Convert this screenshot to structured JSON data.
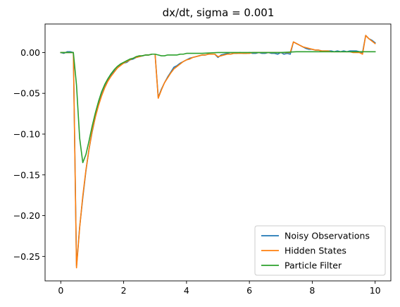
{
  "chart_data": {
    "type": "line",
    "title": "dx/dt, sigma = 0.001",
    "xlabel": "",
    "ylabel": "",
    "xlim": [
      -0.5,
      10.5
    ],
    "ylim": [
      -0.28,
      0.035
    ],
    "x_ticks": [
      0,
      2,
      4,
      6,
      8,
      10
    ],
    "x_tick_labels": [
      "0",
      "2",
      "4",
      "6",
      "8",
      "10"
    ],
    "y_ticks": [
      0.0,
      -0.05,
      -0.1,
      -0.15,
      -0.2,
      -0.25
    ],
    "y_tick_labels": [
      "0.00",
      "−0.05",
      "−0.10",
      "−0.15",
      "−0.20",
      "−0.25"
    ],
    "grid": false,
    "legend_position": "lower-right",
    "series": [
      {
        "name": "Noisy Observations",
        "color": "#1f77b4",
        "x": [
          0,
          0.1,
          0.2,
          0.3,
          0.4,
          0.5,
          0.6,
          0.7,
          0.8,
          0.9,
          1.0,
          1.1,
          1.2,
          1.3,
          1.4,
          1.5,
          1.6,
          1.7,
          1.8,
          1.9,
          2.0,
          2.1,
          2.2,
          2.3,
          2.4,
          2.5,
          2.6,
          2.7,
          2.8,
          2.9,
          3.0,
          3.1,
          3.2,
          3.3,
          3.4,
          3.5,
          3.6,
          3.7,
          3.8,
          3.9,
          4.0,
          4.1,
          4.2,
          4.3,
          4.4,
          4.5,
          4.6,
          4.7,
          4.8,
          4.9,
          5.0,
          5.1,
          5.2,
          5.3,
          5.4,
          5.5,
          5.6,
          5.7,
          5.8,
          5.9,
          6.0,
          6.1,
          6.2,
          6.3,
          6.4,
          6.5,
          6.6,
          6.7,
          6.8,
          6.9,
          7.0,
          7.1,
          7.2,
          7.3,
          7.4,
          7.5,
          7.6,
          7.7,
          7.8,
          7.9,
          8.0,
          8.1,
          8.2,
          8.3,
          8.4,
          8.5,
          8.6,
          8.7,
          8.8,
          8.9,
          9.0,
          9.1,
          9.2,
          9.3,
          9.4,
          9.5,
          9.6,
          9.7,
          9.8,
          9.9,
          10.0
        ],
        "y": [
          0,
          -0.001,
          0.001,
          0.001,
          0,
          -0.262,
          -0.214,
          -0.178,
          -0.145,
          -0.118,
          -0.097,
          -0.079,
          -0.064,
          -0.052,
          -0.042,
          -0.034,
          -0.028,
          -0.023,
          -0.019,
          -0.015,
          -0.013,
          -0.012,
          -0.009,
          -0.008,
          -0.006,
          -0.005,
          -0.004,
          -0.003,
          -0.003,
          -0.002,
          -0.002,
          -0.055,
          -0.045,
          -0.037,
          -0.03,
          -0.024,
          -0.018,
          -0.016,
          -0.013,
          -0.011,
          -0.009,
          -0.007,
          -0.006,
          -0.005,
          -0.004,
          -0.003,
          -0.003,
          -0.002,
          -0.002,
          -0.002,
          -0.006,
          -0.003,
          -0.002,
          -0.001,
          -0.002,
          -0.001,
          -0.001,
          0,
          -0.001,
          -0.001,
          0,
          -0.001,
          -0.001,
          0,
          -0.001,
          -0.001,
          0,
          -0.001,
          -0.001,
          -0.002,
          0,
          -0.002,
          -0.001,
          -0.002,
          0.013,
          0.011,
          0.009,
          0.007,
          0.005,
          0.004,
          0.004,
          0.003,
          0.003,
          0.002,
          0.002,
          0.002,
          0.002,
          0.001,
          0.002,
          0.001,
          0.002,
          0.001,
          0.002,
          0.002,
          0.002,
          0.001,
          0,
          0.021,
          0.017,
          0.015,
          0.012
        ]
      },
      {
        "name": "Hidden States",
        "color": "#ff7f0e",
        "x": [
          0,
          0.1,
          0.2,
          0.3,
          0.4,
          0.5,
          0.6,
          0.7,
          0.8,
          0.9,
          1.0,
          1.1,
          1.2,
          1.3,
          1.4,
          1.5,
          1.6,
          1.7,
          1.8,
          1.9,
          2.0,
          2.1,
          2.2,
          2.3,
          2.4,
          2.5,
          2.6,
          2.7,
          2.8,
          2.9,
          3.0,
          3.1,
          3.2,
          3.3,
          3.4,
          3.5,
          3.6,
          3.7,
          3.8,
          3.9,
          4.0,
          4.1,
          4.2,
          4.3,
          4.4,
          4.5,
          4.6,
          4.7,
          4.8,
          4.9,
          5.0,
          5.1,
          5.2,
          5.3,
          5.4,
          5.5,
          5.6,
          5.7,
          5.8,
          5.9,
          6.0,
          6.1,
          6.2,
          6.3,
          6.4,
          6.5,
          6.6,
          6.7,
          6.8,
          6.9,
          7.0,
          7.1,
          7.2,
          7.3,
          7.4,
          7.5,
          7.6,
          7.7,
          7.8,
          7.9,
          8.0,
          8.1,
          8.2,
          8.3,
          8.4,
          8.5,
          8.6,
          8.7,
          8.8,
          8.9,
          9.0,
          9.1,
          9.2,
          9.3,
          9.4,
          9.5,
          9.6,
          9.7,
          9.8,
          9.9,
          10.0
        ],
        "y": [
          0,
          0,
          0,
          0,
          0,
          -0.264,
          -0.215,
          -0.176,
          -0.144,
          -0.118,
          -0.096,
          -0.079,
          -0.065,
          -0.053,
          -0.043,
          -0.035,
          -0.029,
          -0.024,
          -0.019,
          -0.016,
          -0.013,
          -0.011,
          -0.009,
          -0.007,
          -0.006,
          -0.005,
          -0.004,
          -0.003,
          -0.003,
          -0.002,
          -0.002,
          -0.056,
          -0.046,
          -0.037,
          -0.031,
          -0.025,
          -0.02,
          -0.017,
          -0.014,
          -0.011,
          -0.009,
          -0.008,
          -0.006,
          -0.005,
          -0.004,
          -0.003,
          -0.003,
          -0.002,
          -0.002,
          -0.002,
          -0.005,
          -0.004,
          -0.003,
          -0.002,
          -0.002,
          -0.001,
          -0.001,
          -0.001,
          -0.001,
          -0.001,
          -0.001,
          0,
          0,
          0,
          0,
          0,
          0,
          0,
          0,
          0,
          0,
          0,
          0,
          0,
          0.013,
          0.011,
          0.009,
          0.007,
          0.006,
          0.005,
          0.004,
          0.003,
          0.003,
          0.002,
          0.002,
          0.002,
          0.001,
          0.001,
          0.001,
          0.001,
          0.001,
          0.001,
          0.001,
          0,
          0,
          0,
          -0.002,
          0.021,
          0.017,
          0.014,
          0.011
        ]
      },
      {
        "name": "Particle Filter",
        "color": "#2ca02c",
        "x": [
          0,
          0.1,
          0.2,
          0.3,
          0.4,
          0.5,
          0.6,
          0.7,
          0.8,
          0.9,
          1.0,
          1.1,
          1.2,
          1.3,
          1.4,
          1.5,
          1.6,
          1.7,
          1.8,
          1.9,
          2.0,
          2.1,
          2.2,
          2.3,
          2.4,
          2.5,
          2.6,
          2.7,
          2.8,
          2.9,
          3.0,
          3.1,
          3.2,
          3.3,
          3.4,
          3.5,
          3.6,
          3.7,
          3.8,
          3.9,
          4.0,
          4.5,
          5.0,
          5.5,
          6.0,
          6.5,
          7.0,
          7.5,
          8.0,
          8.5,
          9.0,
          9.5,
          10.0
        ],
        "y": [
          0,
          0,
          0,
          0,
          0,
          -0.04,
          -0.105,
          -0.135,
          -0.125,
          -0.108,
          -0.09,
          -0.074,
          -0.06,
          -0.048,
          -0.039,
          -0.032,
          -0.026,
          -0.021,
          -0.017,
          -0.014,
          -0.012,
          -0.01,
          -0.008,
          -0.007,
          -0.005,
          -0.004,
          -0.004,
          -0.003,
          -0.003,
          -0.002,
          -0.002,
          -0.003,
          -0.004,
          -0.004,
          -0.003,
          -0.003,
          -0.003,
          -0.003,
          -0.002,
          -0.002,
          -0.001,
          -0.001,
          0,
          0,
          0,
          0,
          0,
          0.001,
          0.001,
          0.001,
          0.001,
          0.001,
          0.001
        ]
      }
    ]
  }
}
